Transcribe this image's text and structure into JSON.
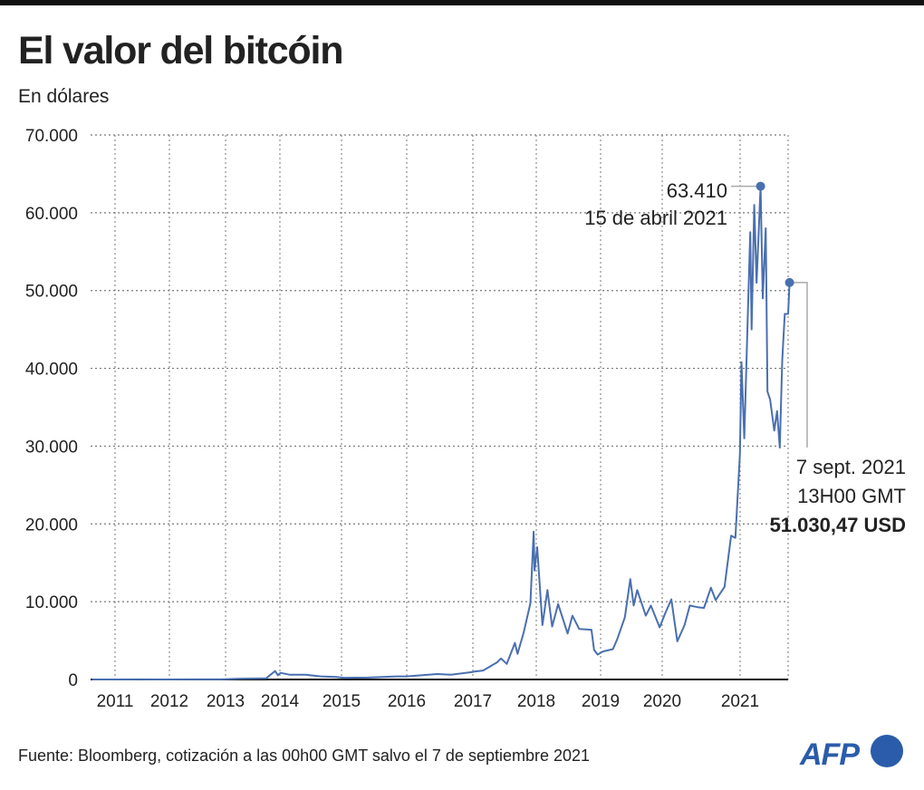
{
  "title": "El valor del bitcóin",
  "subtitle": "En dólares",
  "source": "Fuente: Bloomberg, cotización a las 00h00 GMT salvo el 7 de septiembre 2021",
  "logo": "AFP",
  "colors": {
    "line": "#4a6fb0",
    "logo": "#2a5cab",
    "grid": "#777777",
    "annotation_line": "#aaaaaa"
  },
  "chart_data": {
    "type": "line",
    "title": "El valor del bitcóin",
    "ylabel": "En dólares",
    "ylim": [
      0,
      70000
    ],
    "yticks": [
      0,
      10000,
      20000,
      30000,
      40000,
      50000,
      60000,
      70000
    ],
    "ytick_labels": [
      "0",
      "10.000",
      "20.000",
      "30.000",
      "40.000",
      "50.000",
      "60.000",
      "70.000"
    ],
    "xticks": [
      "2011",
      "2012",
      "2013",
      "2014",
      "2015",
      "2016",
      "2017",
      "2018",
      "2019",
      "2020",
      "2021"
    ],
    "grid": true,
    "series": [
      {
        "points": [
          [
            "2010-08-01",
            0.07
          ],
          [
            "2011-01-01",
            0.3
          ],
          [
            "2011-06-08",
            15
          ],
          [
            "2011-12-01",
            3
          ],
          [
            "2012-06-01",
            6
          ],
          [
            "2012-12-01",
            13
          ],
          [
            "2013-04-09",
            100
          ],
          [
            "2013-10-01",
            150
          ],
          [
            "2013-11-30",
            1100
          ],
          [
            "2013-12-18",
            550
          ],
          [
            "2014-01-05",
            850
          ],
          [
            "2014-03-01",
            600
          ],
          [
            "2014-06-01",
            600
          ],
          [
            "2014-09-01",
            400
          ],
          [
            "2014-12-01",
            320
          ],
          [
            "2015-01-15",
            220
          ],
          [
            "2015-06-01",
            240
          ],
          [
            "2015-11-04",
            400
          ],
          [
            "2016-01-01",
            400
          ],
          [
            "2016-06-17",
            700
          ],
          [
            "2016-09-01",
            600
          ],
          [
            "2016-12-31",
            960
          ],
          [
            "2017-01-05",
            1000
          ],
          [
            "2017-03-01",
            1150
          ],
          [
            "2017-05-20",
            2200
          ],
          [
            "2017-06-12",
            2700
          ],
          [
            "2017-07-15",
            2000
          ],
          [
            "2017-08-31",
            4700
          ],
          [
            "2017-09-15",
            3300
          ],
          [
            "2017-10-20",
            6000
          ],
          [
            "2017-11-28",
            9800
          ],
          [
            "2017-12-17",
            19000
          ],
          [
            "2017-12-22",
            14000
          ],
          [
            "2018-01-06",
            17000
          ],
          [
            "2018-02-05",
            7000
          ],
          [
            "2018-03-05",
            11500
          ],
          [
            "2018-04-01",
            6800
          ],
          [
            "2018-05-05",
            9700
          ],
          [
            "2018-06-28",
            5900
          ],
          [
            "2018-07-25",
            8200
          ],
          [
            "2018-09-01",
            6500
          ],
          [
            "2018-11-10",
            6400
          ],
          [
            "2018-11-25",
            3800
          ],
          [
            "2018-12-15",
            3200
          ],
          [
            "2019-01-15",
            3600
          ],
          [
            "2019-03-15",
            3900
          ],
          [
            "2019-04-10",
            5200
          ],
          [
            "2019-05-25",
            8000
          ],
          [
            "2019-06-26",
            12900
          ],
          [
            "2019-07-16",
            9500
          ],
          [
            "2019-08-06",
            11500
          ],
          [
            "2019-09-26",
            8200
          ],
          [
            "2019-10-26",
            9500
          ],
          [
            "2019-12-17",
            6700
          ],
          [
            "2020-01-15",
            8500
          ],
          [
            "2020-02-13",
            10300
          ],
          [
            "2020-03-12",
            4900
          ],
          [
            "2020-04-15",
            7000
          ],
          [
            "2020-05-10",
            9500
          ],
          [
            "2020-06-15",
            9300
          ],
          [
            "2020-07-15",
            9200
          ],
          [
            "2020-08-17",
            11800
          ],
          [
            "2020-09-08",
            10200
          ],
          [
            "2020-10-20",
            11900
          ],
          [
            "2020-11-20",
            18500
          ],
          [
            "2020-12-10",
            18200
          ],
          [
            "2020-12-31",
            29000
          ],
          [
            "2021-01-08",
            40800
          ],
          [
            "2021-01-22",
            31000
          ],
          [
            "2021-02-08",
            46000
          ],
          [
            "2021-02-21",
            57500
          ],
          [
            "2021-02-28",
            45000
          ],
          [
            "2021-03-13",
            61000
          ],
          [
            "2021-03-25",
            51000
          ],
          [
            "2021-04-14",
            63410
          ],
          [
            "2021-04-25",
            49000
          ],
          [
            "2021-05-10",
            58000
          ],
          [
            "2021-05-19",
            37000
          ],
          [
            "2021-06-01",
            36000
          ],
          [
            "2021-06-22",
            32000
          ],
          [
            "2021-07-06",
            34500
          ],
          [
            "2021-07-20",
            29800
          ],
          [
            "2021-08-01",
            41000
          ],
          [
            "2021-08-14",
            47000
          ],
          [
            "2021-08-31",
            47000
          ],
          [
            "2021-09-07",
            51030.47
          ]
        ]
      }
    ],
    "annotations": [
      {
        "value_label": "63.410",
        "date_label": "15 de abril 2021",
        "date": "2021-04-14",
        "value": 63410
      },
      {
        "date_label": "7 sept. 2021",
        "time_label": "13H00 GMT",
        "value_label": "51.030,47 USD",
        "date": "2021-09-07",
        "value": 51030.47
      }
    ]
  }
}
